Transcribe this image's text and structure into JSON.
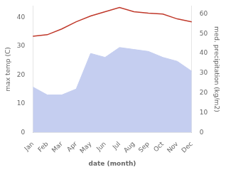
{
  "chart_data": {
    "type": "line",
    "xlabel": "date (month)",
    "ylabel": "max temp (C)",
    "y2label": "med. precipitation (kg/m2)",
    "categories": [
      "Jan",
      "Feb",
      "Mar",
      "Apr",
      "May",
      "Jun",
      "Jul",
      "Aug",
      "Sep",
      "Oct",
      "Nov",
      "Dec"
    ],
    "series": [
      {
        "type": "line",
        "color": "#c0392b",
        "values": [
          33.5,
          34.0,
          36.0,
          38.5,
          40.5,
          42.0,
          43.5,
          42.0,
          41.5,
          41.2,
          39.5,
          38.5
        ]
      },
      {
        "type": "area",
        "axis": "y2",
        "color": "#c5cef0",
        "values": [
          23,
          19,
          19,
          22,
          40,
          38,
          43,
          42,
          41,
          38,
          36,
          31
        ]
      }
    ],
    "ylim": [
      0,
      44
    ],
    "yticks": [
      0,
      10,
      20,
      30,
      40
    ],
    "y2lim": [
      0,
      64
    ],
    "y2ticks": [
      0,
      10,
      20,
      30,
      40,
      50,
      60
    ],
    "grid": false
  }
}
